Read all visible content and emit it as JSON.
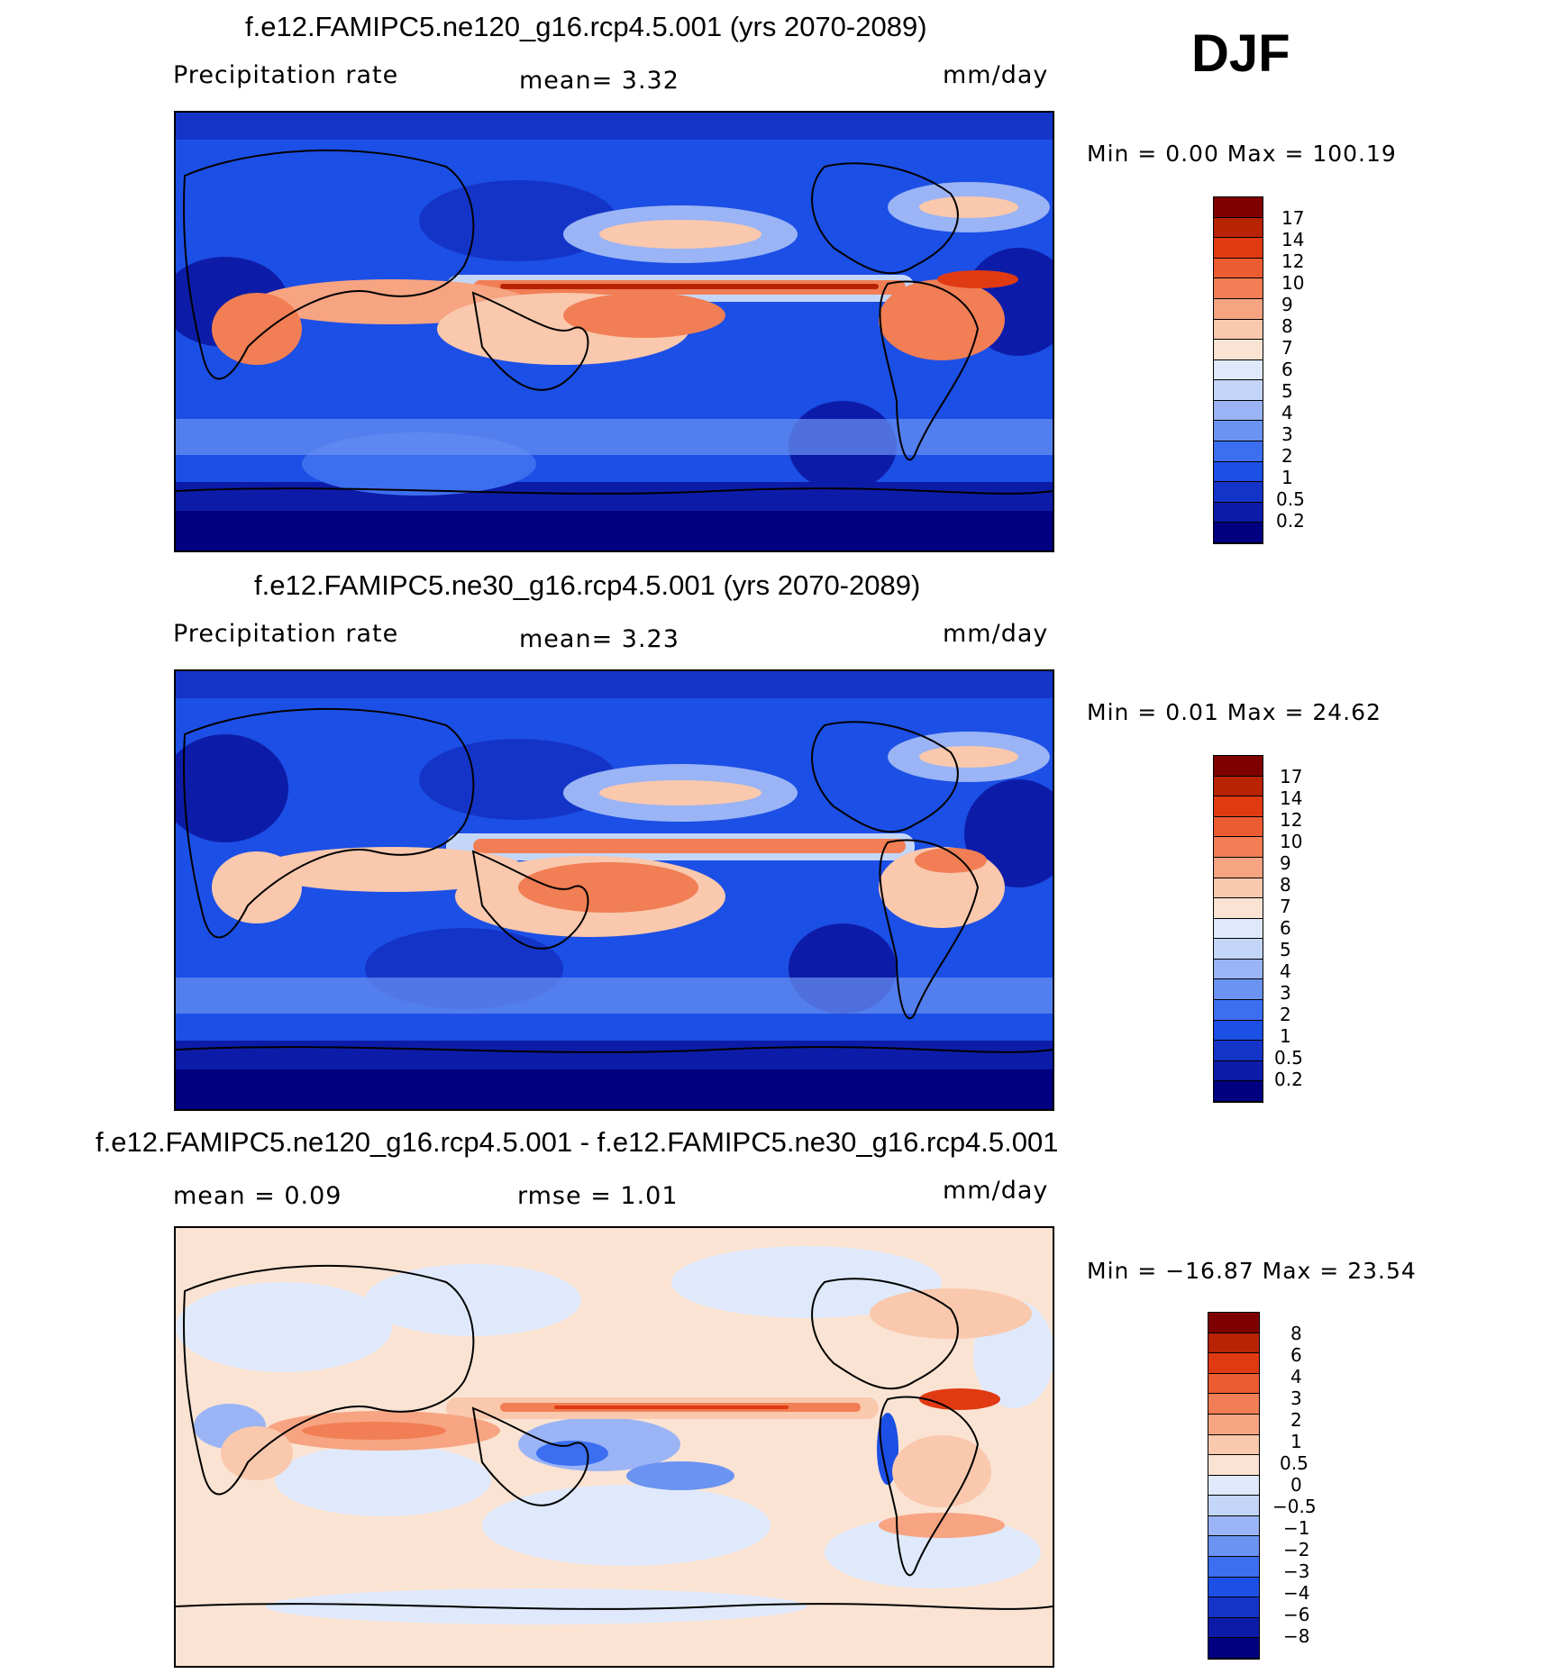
{
  "season": "DJF",
  "colors": {
    "precip_levels": [
      "#000080",
      "#0d1ca8",
      "#1434c8",
      "#1c4fe5",
      "#3c6ef0",
      "#6b93f2",
      "#9ab4f5",
      "#c4d6f8",
      "#dfe9fb",
      "#fbe3d3",
      "#f9c8ad",
      "#f7a482",
      "#f17e54",
      "#ec5c32",
      "#e03a13",
      "#b82304",
      "#7e0000"
    ],
    "diff_levels": [
      "#000080",
      "#0d1ca8",
      "#1434c8",
      "#1c4fe5",
      "#3c6ef0",
      "#6b93f2",
      "#9ab4f5",
      "#c4d6f8",
      "#dfe9fb",
      "#fbe3d3",
      "#f9c8ad",
      "#f7a482",
      "#f17e54",
      "#ec5c32",
      "#e03a13",
      "#b82304",
      "#7e0000"
    ]
  },
  "panels": [
    {
      "title": "f.e12.FAMIPC5.ne120_g16.rcp4.5.001 (yrs 2070-2089)",
      "left_label": "Precipitation  rate",
      "mid_label": "mean=    3.32",
      "units": "mm/day",
      "minmax": "Min  =     0.00  Max  =  100.19",
      "colorbar_ticks": [
        "17",
        "14",
        "12",
        "10",
        "9",
        "8",
        "7",
        "6",
        "5",
        "4",
        "3",
        "2",
        "1",
        "0.5",
        "0.2"
      ]
    },
    {
      "title": "f.e12.FAMIPC5.ne30_g16.rcp4.5.001 (yrs 2070-2089)",
      "left_label": "Precipitation  rate",
      "mid_label": "mean=    3.23",
      "units": "mm/day",
      "minmax": "Min  =     0.01  Max  =   24.62",
      "colorbar_ticks": [
        "17",
        "14",
        "12",
        "10",
        "9",
        "8",
        "7",
        "6",
        "5",
        "4",
        "3",
        "2",
        "1",
        "0.5",
        "0.2"
      ]
    },
    {
      "title": "f.e12.FAMIPC5.ne120_g16.rcp4.5.001 - f.e12.FAMIPC5.ne30_g16.rcp4.5.001",
      "left_label": "mean  =     0.09",
      "mid_label": "rmse  =     1.01",
      "units": "mm/day",
      "minmax": "Min  = −16.87  Max  =   23.54",
      "colorbar_ticks": [
        "8",
        "6",
        "4",
        "3",
        "2",
        "1",
        "0.5",
        "0",
        "−0.5",
        "−1",
        "−2",
        "−3",
        "−4",
        "−6",
        "−8"
      ]
    }
  ]
}
